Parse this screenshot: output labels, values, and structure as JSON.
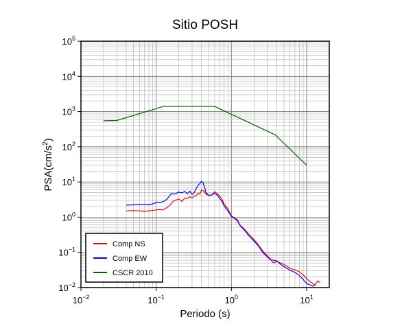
{
  "chart_data": {
    "type": "line",
    "title": "Sitio POSH",
    "xlabel": "Periodo (s)",
    "ylabel_main": "PSA(cm/s",
    "ylabel_sup": "2",
    "ylabel_tail": ")",
    "x_scale": "log",
    "y_scale": "log",
    "xlim": [
      0.01,
      20
    ],
    "ylim": [
      0.01,
      100000
    ],
    "grid": true,
    "legend_position": "bottom-left",
    "x_ticks": [
      {
        "value": 0.01,
        "base": "10",
        "exp": "−2"
      },
      {
        "value": 0.1,
        "base": "10",
        "exp": "−1"
      },
      {
        "value": 1,
        "base": "10",
        "exp": "0"
      },
      {
        "value": 10,
        "base": "10",
        "exp": "1"
      }
    ],
    "y_ticks": [
      {
        "value": 0.01,
        "base": "10",
        "exp": "−2"
      },
      {
        "value": 0.1,
        "base": "10",
        "exp": "−1"
      },
      {
        "value": 1,
        "base": "10",
        "exp": "0"
      },
      {
        "value": 10,
        "base": "10",
        "exp": "1"
      },
      {
        "value": 100,
        "base": "10",
        "exp": "2"
      },
      {
        "value": 1000,
        "base": "10",
        "exp": "3"
      },
      {
        "value": 10000,
        "base": "10",
        "exp": "4"
      },
      {
        "value": 100000,
        "base": "10",
        "exp": "5"
      }
    ],
    "series": [
      {
        "name": "Comp NS",
        "color": "#ff0000",
        "x": [
          0.04,
          0.05,
          0.06,
          0.07,
          0.08,
          0.09,
          0.1,
          0.11,
          0.12,
          0.13,
          0.14,
          0.15,
          0.16,
          0.17,
          0.18,
          0.2,
          0.22,
          0.24,
          0.26,
          0.28,
          0.3,
          0.32,
          0.34,
          0.36,
          0.38,
          0.4,
          0.42,
          0.44,
          0.46,
          0.5,
          0.55,
          0.6,
          0.65,
          0.7,
          0.75,
          0.8,
          0.9,
          1.0,
          1.1,
          1.2,
          1.3,
          1.5,
          1.7,
          2.0,
          2.3,
          2.6,
          3.0,
          3.3,
          3.6,
          4.0,
          4.5,
          5.0,
          5.5,
          6.0,
          7.0,
          8.0,
          9.0,
          10.0,
          11.0,
          12.0,
          13.0,
          14.0,
          15.0
        ],
        "y": [
          1.5,
          1.55,
          1.5,
          1.45,
          1.5,
          1.55,
          1.6,
          1.65,
          1.6,
          1.7,
          1.9,
          2.1,
          2.5,
          2.9,
          3.0,
          3.3,
          2.8,
          3.5,
          3.4,
          3.8,
          3.5,
          4.0,
          4.0,
          4.8,
          4.5,
          5.8,
          5.7,
          5.2,
          4.5,
          4.2,
          4.3,
          5.3,
          4.6,
          4.0,
          3.2,
          2.4,
          1.7,
          1.1,
          0.95,
          0.85,
          0.6,
          0.45,
          0.33,
          0.23,
          0.16,
          0.11,
          0.08,
          0.065,
          0.05,
          0.055,
          0.05,
          0.045,
          0.04,
          0.035,
          0.032,
          0.028,
          0.023,
          0.018,
          0.015,
          0.013,
          0.012,
          0.0155,
          0.014
        ]
      },
      {
        "name": "Comp EW",
        "color": "#0000ff",
        "x": [
          0.04,
          0.05,
          0.06,
          0.07,
          0.08,
          0.09,
          0.1,
          0.11,
          0.12,
          0.13,
          0.14,
          0.15,
          0.16,
          0.17,
          0.18,
          0.2,
          0.22,
          0.24,
          0.26,
          0.28,
          0.3,
          0.32,
          0.34,
          0.36,
          0.38,
          0.4,
          0.42,
          0.44,
          0.46,
          0.5,
          0.55,
          0.6,
          0.65,
          0.7,
          0.75,
          0.8,
          0.9,
          1.0,
          1.1,
          1.2,
          1.3,
          1.5,
          1.7,
          2.0,
          2.3,
          2.6,
          3.0,
          3.3,
          3.6,
          4.0,
          4.5,
          5.0,
          5.5,
          6.0,
          7.0,
          8.0,
          9.0,
          10.0,
          11.0,
          12.0,
          13.0
        ],
        "y": [
          2.2,
          2.25,
          2.3,
          2.3,
          2.25,
          2.4,
          2.6,
          2.6,
          2.7,
          2.9,
          3.3,
          4.0,
          4.8,
          4.5,
          4.6,
          5.2,
          4.9,
          5.4,
          4.6,
          5.5,
          4.4,
          5.0,
          6.5,
          8.0,
          9.0,
          10.5,
          9.5,
          7.0,
          5.0,
          4.1,
          4.3,
          4.8,
          4.2,
          3.4,
          2.8,
          2.1,
          1.5,
          1.05,
          0.92,
          0.8,
          0.58,
          0.42,
          0.3,
          0.21,
          0.15,
          0.1,
          0.075,
          0.062,
          0.06,
          0.057,
          0.046,
          0.039,
          0.035,
          0.031,
          0.027,
          0.022,
          0.017,
          0.013,
          0.012,
          0.011,
          0.0115
        ]
      },
      {
        "name": "CSCR 2010",
        "color": "#006400",
        "x": [
          0.02,
          0.03,
          0.125,
          0.6,
          3.8,
          10.0
        ],
        "y": [
          550,
          560,
          1400,
          1400,
          220,
          30
        ]
      }
    ]
  }
}
